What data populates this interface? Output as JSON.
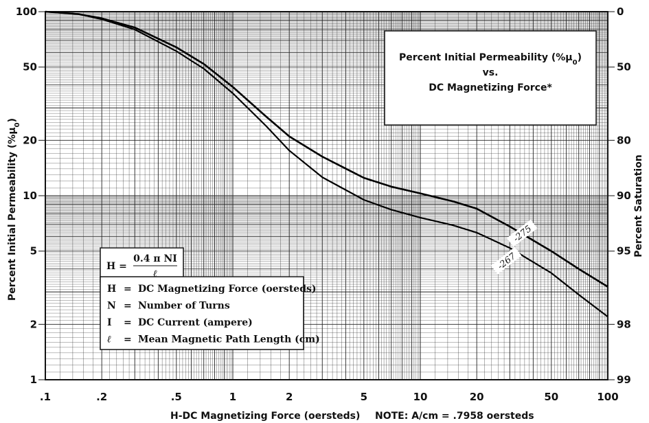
{
  "chart_data": {
    "type": "line",
    "title_lines": [
      "Percent Initial Permeability (%μ",
      "vs.",
      "DC Magnetizing Force*"
    ],
    "title_subscript": "0",
    "title_suffix": ")",
    "xlabel": "H-DC Magnetizing Force (oersteds)",
    "note": "NOTE:  A/cm = .7958 oersteds",
    "ylabel": "Percent Initial Permeability (%μ",
    "ylabel_subscript": "0",
    "ylabel_suffix": ")",
    "y2label": "Percent  Saturation",
    "x_scale": "log",
    "y_scale": "log",
    "xlim": [
      0.1,
      100
    ],
    "ylim": [
      1,
      100
    ],
    "grid": true,
    "x_ticks": [
      {
        "value": 0.1,
        "label": ".1"
      },
      {
        "value": 0.2,
        "label": ".2"
      },
      {
        "value": 0.5,
        "label": ".5"
      },
      {
        "value": 1,
        "label": "1"
      },
      {
        "value": 2,
        "label": "2"
      },
      {
        "value": 5,
        "label": "5"
      },
      {
        "value": 10,
        "label": "10"
      },
      {
        "value": 20,
        "label": "20"
      },
      {
        "value": 50,
        "label": "50"
      },
      {
        "value": 100,
        "label": "100"
      }
    ],
    "y_ticks": [
      {
        "value": 1,
        "label": "1"
      },
      {
        "value": 2,
        "label": "2"
      },
      {
        "value": 5,
        "label": "5"
      },
      {
        "value": 10,
        "label": "10"
      },
      {
        "value": 20,
        "label": "20"
      },
      {
        "value": 50,
        "label": "50"
      },
      {
        "value": 100,
        "label": "100"
      }
    ],
    "y2_ticks": [
      {
        "value": 100,
        "label": "0"
      },
      {
        "value": 50,
        "label": "50"
      },
      {
        "value": 20,
        "label": "80"
      },
      {
        "value": 10,
        "label": "90"
      },
      {
        "value": 5,
        "label": "95"
      },
      {
        "value": 2,
        "label": "98"
      },
      {
        "value": 1,
        "label": "99"
      }
    ],
    "series": [
      {
        "name": "-275",
        "x": [
          0.1,
          0.15,
          0.2,
          0.3,
          0.5,
          0.7,
          1.0,
          1.5,
          2.0,
          3.0,
          5.0,
          7.0,
          10,
          15,
          20,
          30,
          50,
          70,
          100
        ],
        "y": [
          100,
          97,
          92,
          82,
          64,
          52,
          39,
          27,
          21,
          16.3,
          12.5,
          11.2,
          10.3,
          9.3,
          8.5,
          6.8,
          5.0,
          4.0,
          3.2
        ]
      },
      {
        "name": "-267",
        "x": [
          0.1,
          0.15,
          0.2,
          0.3,
          0.5,
          0.7,
          1.0,
          1.5,
          2.0,
          3.0,
          5.0,
          7.0,
          10,
          15,
          20,
          30,
          50,
          70,
          100
        ],
        "y": [
          100,
          97,
          91,
          80,
          61,
          49,
          36,
          24,
          17.6,
          12.6,
          9.5,
          8.4,
          7.6,
          6.9,
          6.3,
          5.2,
          3.8,
          2.9,
          2.2
        ]
      }
    ]
  },
  "formula_box": {
    "lhs": "H =",
    "numerator": "0.4 π NI",
    "denominator": "ℓ"
  },
  "definitions": [
    {
      "symbol": "H",
      "eq": "=",
      "text": "DC Magnetizing Force (oersteds)"
    },
    {
      "symbol": "N",
      "eq": "=",
      "text": "Number of Turns"
    },
    {
      "symbol": "I",
      "eq": "=",
      "text": "DC Current (ampere)"
    },
    {
      "symbol": "ℓ",
      "eq": "=",
      "text": "Mean Magnetic Path Length (cm)"
    }
  ]
}
